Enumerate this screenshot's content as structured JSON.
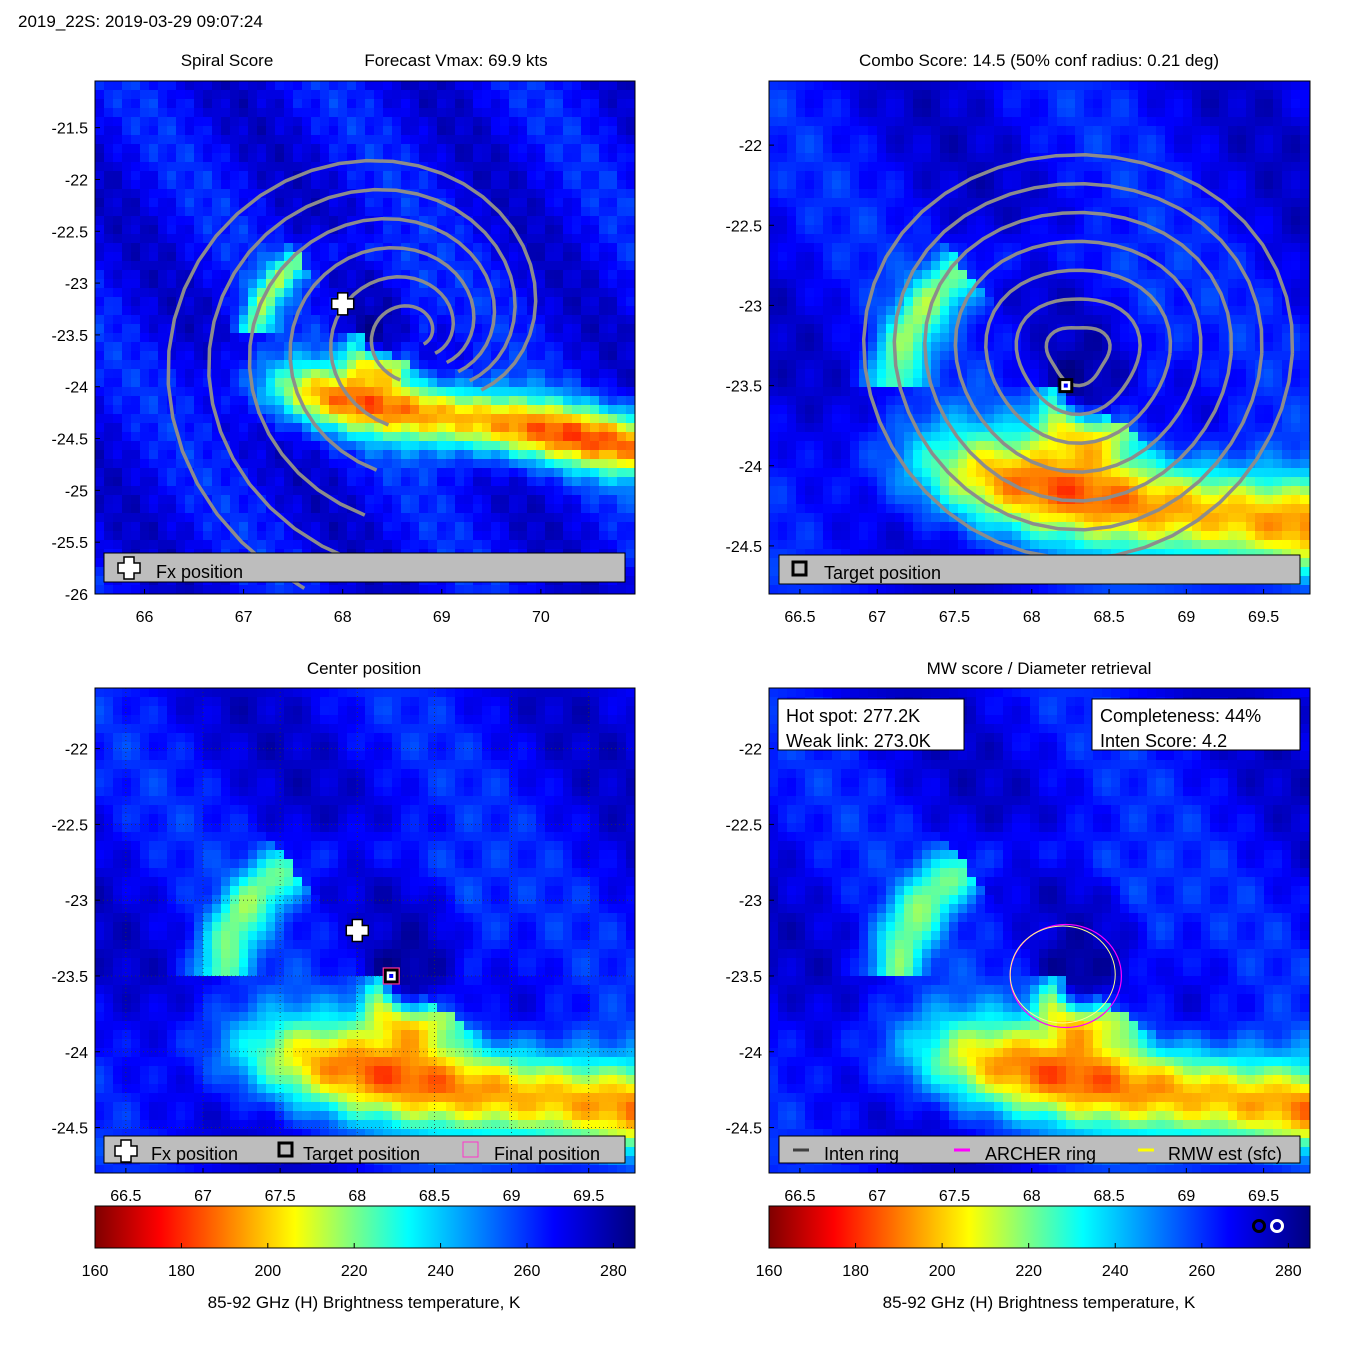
{
  "header": {
    "title": "2019_22S: 2019-03-29 09:07:24"
  },
  "colors": {
    "colormap": [
      "#7f0000",
      "#ff0000",
      "#ffff00",
      "#00ffff",
      "#0000ff",
      "#00007f"
    ],
    "contour": "#8c8c8c",
    "legend_bg": "#bdbdbd",
    "archer_ring": "#ff00ff",
    "rmw_ring": "#ffff00",
    "inten_ring": "#404040"
  },
  "chart_data": [
    {
      "type": "heatmap",
      "title_left": "Spiral Score",
      "title_right": "Forecast Vmax: 69.9 kts",
      "xlim": [
        65.5,
        70.95
      ],
      "ylim": [
        -26,
        -21.05
      ],
      "xticks": [
        "66",
        "67",
        "68",
        "69",
        "70"
      ],
      "yticks": [
        "-21.5",
        "-22",
        "-22.5",
        "-23",
        "-23.5",
        "-24",
        "-24.5",
        "-25",
        "-25.5",
        "-26"
      ],
      "markers": [
        {
          "name": "Fx position",
          "symbol": "plus",
          "x": 68.0,
          "y": -23.2
        }
      ],
      "legend": [
        {
          "symbol": "plus",
          "label": "Fx position"
        }
      ],
      "overlay": "spiral contours"
    },
    {
      "type": "heatmap",
      "title": "Combo Score: 14.5  (50% conf radius: 0.21 deg)",
      "xlim": [
        66.3,
        69.8
      ],
      "ylim": [
        -24.8,
        -21.6
      ],
      "xticks": [
        "66.5",
        "67",
        "67.5",
        "68",
        "68.5",
        "69",
        "69.5"
      ],
      "yticks": [
        "-22",
        "-22.5",
        "-23",
        "-23.5",
        "-24",
        "-24.5"
      ],
      "markers": [
        {
          "name": "Target position",
          "symbol": "square",
          "x": 68.22,
          "y": -23.5
        }
      ],
      "legend": [
        {
          "symbol": "square",
          "label": "Target position"
        }
      ],
      "overlay": "score contours"
    },
    {
      "type": "heatmap",
      "title": "Center position",
      "xlim": [
        66.3,
        69.8
      ],
      "ylim": [
        -24.8,
        -21.6
      ],
      "xticks": [
        "66.5",
        "67",
        "67.5",
        "68",
        "68.5",
        "69",
        "69.5"
      ],
      "yticks": [
        "-22",
        "-22.5",
        "-23",
        "-23.5",
        "-24",
        "-24.5"
      ],
      "grid": true,
      "markers": [
        {
          "name": "Fx position",
          "symbol": "plus",
          "x": 68.0,
          "y": -23.2
        },
        {
          "name": "Target position",
          "symbol": "square",
          "x": 68.22,
          "y": -23.5
        },
        {
          "name": "Final position",
          "symbol": "magenta-square",
          "x": 68.22,
          "y": -23.5
        }
      ],
      "legend": [
        {
          "symbol": "plus",
          "label": "Fx position"
        },
        {
          "symbol": "square",
          "label": "Target position"
        },
        {
          "symbol": "magenta-square",
          "label": "Final position"
        }
      ],
      "colorbar": {
        "range": [
          160,
          285
        ],
        "ticks": [
          "160",
          "180",
          "200",
          "220",
          "240",
          "260",
          "280"
        ],
        "label": "85-92 GHz (H) Brightness temperature, K"
      }
    },
    {
      "type": "heatmap",
      "title": "MW score / Diameter retrieval",
      "xlim": [
        66.3,
        69.8
      ],
      "ylim": [
        -24.8,
        -21.6
      ],
      "xticks": [
        "66.5",
        "67",
        "67.5",
        "68",
        "68.5",
        "69",
        "69.5"
      ],
      "yticks": [
        "-22",
        "-22.5",
        "-23",
        "-23.5",
        "-24",
        "-24.5"
      ],
      "info_left": [
        "Hot spot: 277.2K",
        "Weak link: 273.0K"
      ],
      "info_right": [
        "Completeness: 44%",
        "Inten Score: 4.2"
      ],
      "rings": [
        {
          "name": "ARCHER ring",
          "cx": 68.22,
          "cy": -23.5,
          "rx": 0.36,
          "ry": 0.34
        },
        {
          "name": "RMW est (sfc)",
          "cx": 68.2,
          "cy": -23.49,
          "rx": 0.34,
          "ry": 0.32
        }
      ],
      "legend": [
        {
          "symbol": "dark-line",
          "label": "Inten ring"
        },
        {
          "symbol": "magenta-line",
          "label": "ARCHER ring"
        },
        {
          "symbol": "yellow-line",
          "label": "RMW est (sfc)"
        }
      ],
      "colorbar": {
        "range": [
          160,
          285
        ],
        "ticks": [
          "160",
          "180",
          "200",
          "220",
          "240",
          "260",
          "280"
        ],
        "label": "85-92 GHz (H) Brightness temperature, K"
      }
    }
  ]
}
